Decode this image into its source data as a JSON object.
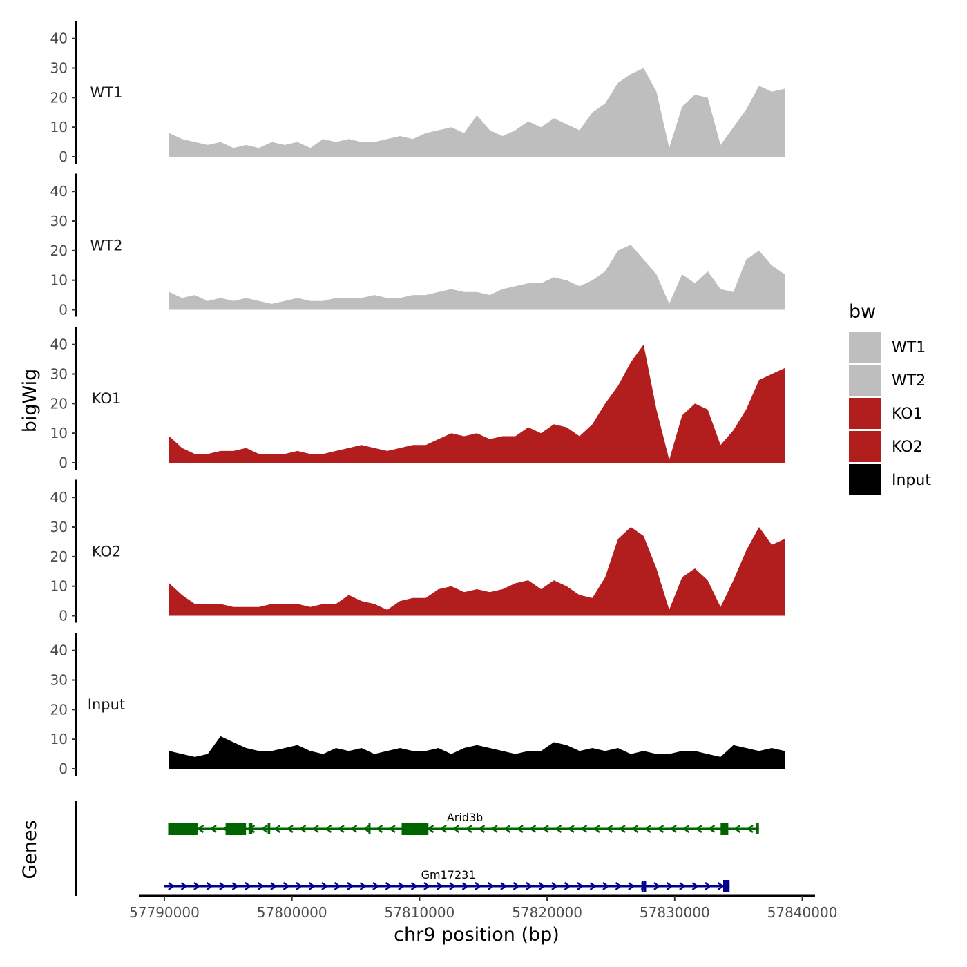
{
  "chart_data": {
    "type": "area",
    "ylabel": "bigWig",
    "xlabel": "chr9 position (bp)",
    "xlim": [
      57790000,
      57838000
    ],
    "gene_track_xlim": [
      57788000,
      57841000
    ],
    "ylim": [
      0,
      46
    ],
    "y_ticks": [
      0,
      10,
      20,
      30,
      40
    ],
    "x_ticks": [
      57790000,
      57800000,
      57810000,
      57820000,
      57830000,
      57840000
    ],
    "x_tick_labels": [
      "57790000",
      "57800000",
      "57810000",
      "57820000",
      "57830000",
      "57840000"
    ],
    "series": [
      {
        "name": "WT1",
        "color": "#bebebe",
        "x": [
          57790000,
          57791000,
          57792000,
          57793000,
          57794000,
          57795000,
          57796000,
          57797000,
          57798000,
          57799000,
          57800000,
          57801000,
          57802000,
          57803000,
          57804000,
          57805000,
          57806000,
          57807000,
          57808000,
          57809000,
          57810000,
          57811000,
          57812000,
          57813000,
          57814000,
          57815000,
          57816000,
          57817000,
          57818000,
          57819000,
          57820000,
          57821000,
          57822000,
          57823000,
          57824000,
          57825000,
          57826000,
          57827000,
          57828000,
          57829000,
          57830000,
          57831000,
          57832000,
          57833000,
          57834000,
          57835000,
          57836000,
          57837000,
          57838000
        ],
        "values": [
          8,
          6,
          5,
          4,
          5,
          3,
          4,
          3,
          5,
          4,
          5,
          3,
          6,
          5,
          6,
          5,
          5,
          6,
          7,
          6,
          8,
          9,
          10,
          8,
          14,
          9,
          7,
          9,
          12,
          10,
          13,
          11,
          9,
          15,
          18,
          25,
          28,
          30,
          22,
          3,
          17,
          21,
          20,
          4,
          10,
          16,
          24,
          22,
          23
        ]
      },
      {
        "name": "WT2",
        "color": "#bebebe",
        "x": [
          57790000,
          57791000,
          57792000,
          57793000,
          57794000,
          57795000,
          57796000,
          57797000,
          57798000,
          57799000,
          57800000,
          57801000,
          57802000,
          57803000,
          57804000,
          57805000,
          57806000,
          57807000,
          57808000,
          57809000,
          57810000,
          57811000,
          57812000,
          57813000,
          57814000,
          57815000,
          57816000,
          57817000,
          57818000,
          57819000,
          57820000,
          57821000,
          57822000,
          57823000,
          57824000,
          57825000,
          57826000,
          57827000,
          57828000,
          57829000,
          57830000,
          57831000,
          57832000,
          57833000,
          57834000,
          57835000,
          57836000,
          57837000,
          57838000
        ],
        "values": [
          6,
          4,
          5,
          3,
          4,
          3,
          4,
          3,
          2,
          3,
          4,
          3,
          3,
          4,
          4,
          4,
          5,
          4,
          4,
          5,
          5,
          6,
          7,
          6,
          6,
          5,
          7,
          8,
          9,
          9,
          11,
          10,
          8,
          10,
          13,
          20,
          22,
          17,
          12,
          2,
          12,
          9,
          13,
          7,
          6,
          17,
          20,
          15,
          12
        ]
      },
      {
        "name": "KO1",
        "color": "#b21e1e",
        "x": [
          57790000,
          57791000,
          57792000,
          57793000,
          57794000,
          57795000,
          57796000,
          57797000,
          57798000,
          57799000,
          57800000,
          57801000,
          57802000,
          57803000,
          57804000,
          57805000,
          57806000,
          57807000,
          57808000,
          57809000,
          57810000,
          57811000,
          57812000,
          57813000,
          57814000,
          57815000,
          57816000,
          57817000,
          57818000,
          57819000,
          57820000,
          57821000,
          57822000,
          57823000,
          57824000,
          57825000,
          57826000,
          57827000,
          57828000,
          57829000,
          57830000,
          57831000,
          57832000,
          57833000,
          57834000,
          57835000,
          57836000,
          57837000,
          57838000
        ],
        "values": [
          9,
          5,
          3,
          3,
          4,
          4,
          5,
          3,
          3,
          3,
          4,
          3,
          3,
          4,
          5,
          6,
          5,
          4,
          5,
          6,
          6,
          8,
          10,
          9,
          10,
          8,
          9,
          9,
          12,
          10,
          13,
          12,
          9,
          13,
          20,
          26,
          34,
          40,
          18,
          1,
          16,
          20,
          18,
          6,
          11,
          18,
          28,
          30,
          32
        ]
      },
      {
        "name": "KO2",
        "color": "#b21e1e",
        "x": [
          57790000,
          57791000,
          57792000,
          57793000,
          57794000,
          57795000,
          57796000,
          57797000,
          57798000,
          57799000,
          57800000,
          57801000,
          57802000,
          57803000,
          57804000,
          57805000,
          57806000,
          57807000,
          57808000,
          57809000,
          57810000,
          57811000,
          57812000,
          57813000,
          57814000,
          57815000,
          57816000,
          57817000,
          57818000,
          57819000,
          57820000,
          57821000,
          57822000,
          57823000,
          57824000,
          57825000,
          57826000,
          57827000,
          57828000,
          57829000,
          57830000,
          57831000,
          57832000,
          57833000,
          57834000,
          57835000,
          57836000,
          57837000,
          57838000
        ],
        "values": [
          11,
          7,
          4,
          4,
          4,
          3,
          3,
          3,
          4,
          4,
          4,
          3,
          4,
          4,
          7,
          5,
          4,
          2,
          5,
          6,
          6,
          9,
          10,
          8,
          9,
          8,
          9,
          11,
          12,
          9,
          12,
          10,
          7,
          6,
          13,
          26,
          30,
          27,
          16,
          2,
          13,
          16,
          12,
          3,
          12,
          22,
          30,
          24,
          26
        ]
      },
      {
        "name": "Input",
        "color": "#000000",
        "x": [
          57790000,
          57791000,
          57792000,
          57793000,
          57794000,
          57795000,
          57796000,
          57797000,
          57798000,
          57799000,
          57800000,
          57801000,
          57802000,
          57803000,
          57804000,
          57805000,
          57806000,
          57807000,
          57808000,
          57809000,
          57810000,
          57811000,
          57812000,
          57813000,
          57814000,
          57815000,
          57816000,
          57817000,
          57818000,
          57819000,
          57820000,
          57821000,
          57822000,
          57823000,
          57824000,
          57825000,
          57826000,
          57827000,
          57828000,
          57829000,
          57830000,
          57831000,
          57832000,
          57833000,
          57834000,
          57835000,
          57836000,
          57837000,
          57838000
        ],
        "values": [
          6,
          5,
          4,
          5,
          11,
          9,
          7,
          6,
          6,
          7,
          8,
          6,
          5,
          7,
          6,
          7,
          5,
          6,
          7,
          6,
          6,
          7,
          5,
          7,
          8,
          7,
          6,
          5,
          6,
          6,
          9,
          8,
          6,
          7,
          6,
          7,
          5,
          6,
          5,
          5,
          6,
          6,
          5,
          4,
          8,
          7,
          6,
          7,
          6
        ]
      }
    ],
    "legend": {
      "title": "bw",
      "placement": "right",
      "items": [
        {
          "label": "WT1",
          "color": "#bebebe"
        },
        {
          "label": "WT2",
          "color": "#bebebe"
        },
        {
          "label": "KO1",
          "color": "#b21e1e"
        },
        {
          "label": "KO2",
          "color": "#b21e1e"
        },
        {
          "label": "Input",
          "color": "#000000"
        }
      ]
    },
    "genes_track_label": "Genes",
    "genes": [
      {
        "name": "Arid3b",
        "strand": "-",
        "color": "#006400",
        "start": 57790300,
        "end": 57836600,
        "exons": [
          [
            57790300,
            57792600
          ],
          [
            57794800,
            57796400
          ],
          [
            57796600,
            57796900
          ],
          [
            57798100,
            57798300
          ],
          [
            57806000,
            57806100
          ],
          [
            57808600,
            57810700
          ],
          [
            57833600,
            57834200
          ],
          [
            57836400,
            57836600
          ]
        ]
      },
      {
        "name": "Gm17231",
        "strand": "+",
        "color": "#00008b",
        "start": 57790000,
        "end": 57834300,
        "exons": [
          [
            57827400,
            57827500
          ],
          [
            57827600,
            57827700
          ],
          [
            57833800,
            57834300
          ]
        ]
      }
    ]
  }
}
